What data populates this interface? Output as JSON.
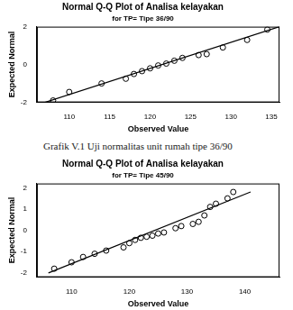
{
  "chart_data": [
    {
      "type": "scatter",
      "title": "Normal Q-Q Plot of Analisa kelayakan",
      "subtitle": "for TP= Tipe 36/90",
      "x_label": "Observed Value",
      "y_label": "Expected Normal",
      "series": [
        {
          "type": "scatter",
          "marker": "circle",
          "color": "#000000",
          "x": [
            108,
            110,
            114,
            117,
            118,
            119,
            120,
            121,
            122,
            123,
            124,
            126,
            127,
            129,
            132,
            134.5
          ],
          "values": [
            -1.9,
            -1.45,
            -1.0,
            -0.75,
            -0.5,
            -0.35,
            -0.2,
            -0.05,
            0.05,
            0.2,
            0.35,
            0.5,
            0.55,
            0.9,
            1.3,
            1.85
          ]
        },
        {
          "type": "line",
          "line_style": "solid",
          "color": "#000000",
          "x": [
            107,
            136
          ],
          "values": [
            -2,
            2
          ]
        }
      ],
      "xlim": [
        106,
        136
      ],
      "xticks": [
        110,
        115,
        120,
        125,
        130,
        135
      ],
      "ylim": [
        -2,
        2
      ],
      "yticks": [
        -2,
        0,
        2
      ],
      "grid": false
    },
    {
      "type": "scatter",
      "title": "Normal Q-Q Plot of Analisa kelayakan",
      "subtitle": "for TP= Tipe 45/90",
      "x_label": "Observed Value",
      "y_label": "Expected Normal",
      "series": [
        {
          "type": "scatter",
          "marker": "circle",
          "color": "#000000",
          "x": [
            107,
            110,
            112,
            114,
            116,
            119,
            120,
            121,
            122,
            123,
            124,
            125,
            126,
            128,
            129,
            131,
            132,
            133,
            134,
            135,
            137,
            138
          ],
          "values": [
            -1.8,
            -1.5,
            -1.25,
            -1.1,
            -0.95,
            -0.8,
            -0.6,
            -0.45,
            -0.35,
            -0.3,
            -0.25,
            -0.15,
            -0.1,
            0.1,
            0.2,
            0.3,
            0.4,
            0.7,
            1.1,
            1.25,
            1.5,
            1.8
          ]
        },
        {
          "type": "line",
          "line_style": "solid",
          "color": "#000000",
          "x": [
            106,
            141
          ],
          "values": [
            -2,
            1.8
          ]
        }
      ],
      "xlim": [
        104,
        146
      ],
      "xticks": [
        110,
        120,
        130,
        140
      ],
      "ylim": [
        -2.2,
        2.2
      ],
      "yticks": [
        -2,
        -1,
        0,
        1,
        2
      ],
      "grid": false
    }
  ],
  "caption": "Grafik V.1 Uji normalitas unit rumah tipe 36/90"
}
